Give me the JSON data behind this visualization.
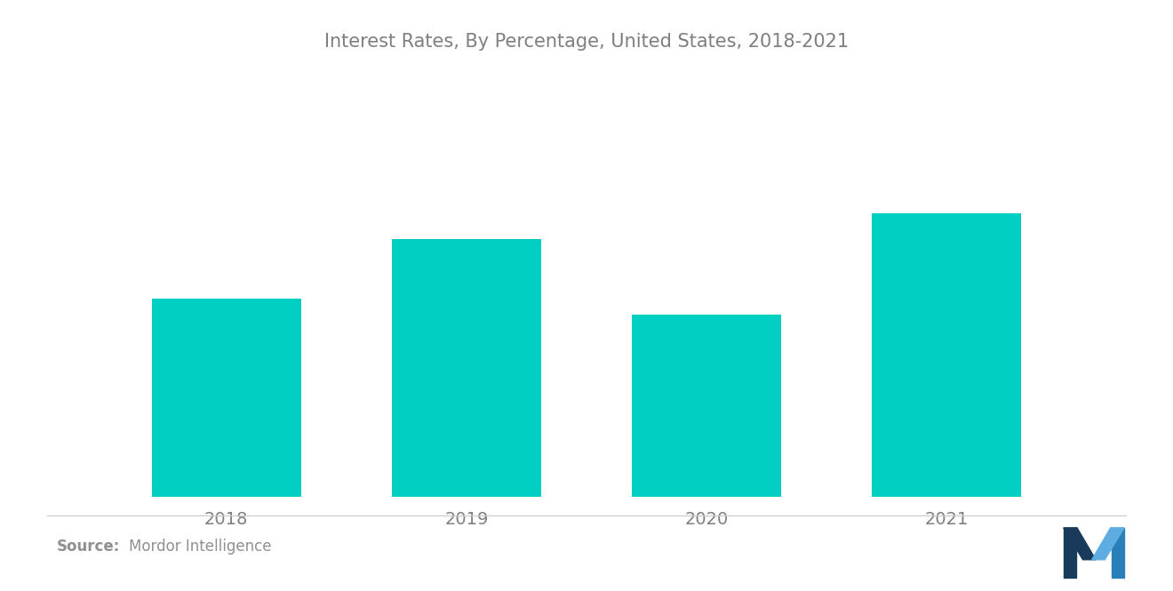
{
  "title": "Interest Rates, By Percentage, United States, 2018-2021",
  "categories": [
    "2018",
    "2019",
    "2020",
    "2021"
  ],
  "values": [
    2.27,
    2.96,
    2.09,
    3.25
  ],
  "bar_color": "#00CFC1",
  "background_color": "#ffffff",
  "title_color": "#7f7f7f",
  "tick_color": "#7f7f7f",
  "source_color": "#909090",
  "title_fontsize": 15,
  "tick_fontsize": 14,
  "source_fontsize": 12,
  "bar_width": 0.62
}
